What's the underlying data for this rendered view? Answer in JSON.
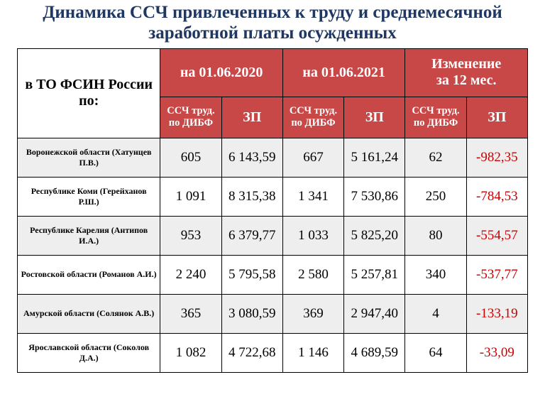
{
  "title": "Динамика ССЧ привлеченных к труду и среднемесячной заработной платы осужденных",
  "header": {
    "col0": "в ТО ФСИН России по:",
    "grp1": "на 01.06.2020",
    "grp2": "на 01.06.2021",
    "grp3_l1": "Изменение",
    "grp3_l2": "за 12 мес.",
    "sub_ssch": "ССЧ труд. по ДИБФ",
    "sub_zp": "ЗП"
  },
  "rows": [
    {
      "label": "Воронежской области (Хатунцев П.В.)",
      "a": "605",
      "b": "6 143,59",
      "c": "667",
      "d": "5 161,24",
      "e": "62",
      "f": "-982,35",
      "fneg": true
    },
    {
      "label": "Республике Коми (Герейханов Р.Ш.)",
      "a": "1 091",
      "b": "8 315,38",
      "c": "1 341",
      "d": "7 530,86",
      "e": "250",
      "f": "-784,53",
      "fneg": true
    },
    {
      "label": "Республике Карелия (Антипов И.А.)",
      "a": "953",
      "b": "6 379,77",
      "c": "1 033",
      "d": "5 825,20",
      "e": "80",
      "f": "-554,57",
      "fneg": true
    },
    {
      "label": "Ростовской области (Романов А.И.)",
      "a": "2 240",
      "b": "5 795,58",
      "c": "2 580",
      "d": "5 257,81",
      "e": "340",
      "f": "-537,77",
      "fneg": true
    },
    {
      "label": "Амурской области (Солянок А.В.)",
      "a": "365",
      "b": "3 080,59",
      "c": "369",
      "d": "2 947,40",
      "e": "4",
      "f": "-133,19",
      "fneg": true
    },
    {
      "label": "Ярославской области (Соколов Д.А.)",
      "a": "1 082",
      "b": "4 722,68",
      "c": "1 146",
      "d": "4 689,59",
      "e": "64",
      "f": "-33,09",
      "fneg": true
    }
  ],
  "style": {
    "title_color": "#1f3863",
    "header_red": "#c84747",
    "row_zebra": "#eeeeee",
    "negative_color": "#cc0000",
    "col_widths": [
      "28%",
      "12%",
      "12%",
      "12%",
      "12%",
      "12%",
      "12%"
    ]
  }
}
